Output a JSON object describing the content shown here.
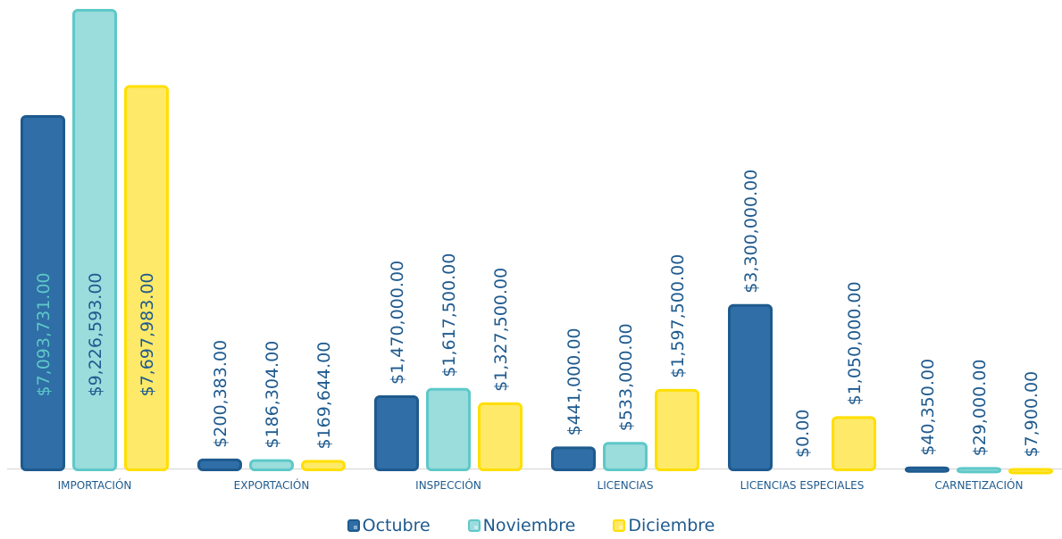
{
  "chart_data": {
    "type": "bar",
    "categories": [
      "IMPORTACIÓN",
      "EXPORTACIÓN",
      "INSPECCIÓN",
      "LICENCIAS",
      "LICENCIAS ESPECIALES",
      "CARNETIZACIÓN"
    ],
    "series": [
      {
        "name": "Octubre",
        "values": [
          7093731,
          200383,
          1470000,
          441000,
          3300000,
          40350
        ],
        "labels": [
          "$7,093,731.00",
          "$200,383.00",
          "$1,470,000.00",
          "$441,000.00",
          "$3,300,000.00",
          "$40,350.00"
        ],
        "color": "#1e5a8e",
        "fill": "#2f6ea6"
      },
      {
        "name": "Noviembre",
        "values": [
          9226593,
          186304,
          1617500,
          533000,
          0,
          29000
        ],
        "labels": [
          "$9,226,593.00",
          "$186,304.00",
          "$1,617,500.00",
          "$533,000.00",
          "$0.00",
          "$29,000.00"
        ],
        "color": "#5ec8c8",
        "fill": "#9bdcdc"
      },
      {
        "name": "Diciembre",
        "values": [
          7697983,
          169644,
          1327500,
          1597500,
          1050000,
          7900
        ],
        "labels": [
          "$7,697,983.00",
          "$169,644.00",
          "$1,327,500.00",
          "$1,597,500.00",
          "$1,050,000.00",
          "$7,900.00"
        ],
        "color": "#ffdf00",
        "fill": "#ffe968"
      }
    ],
    "ylim": [
      0,
      9226593
    ],
    "grid": false,
    "legend_position": "bottom",
    "label_text_color": "#1e5a8e",
    "label_inside_colors": [
      "#5ec8c8",
      "#1e5a8e",
      "#1e5a8e"
    ]
  }
}
